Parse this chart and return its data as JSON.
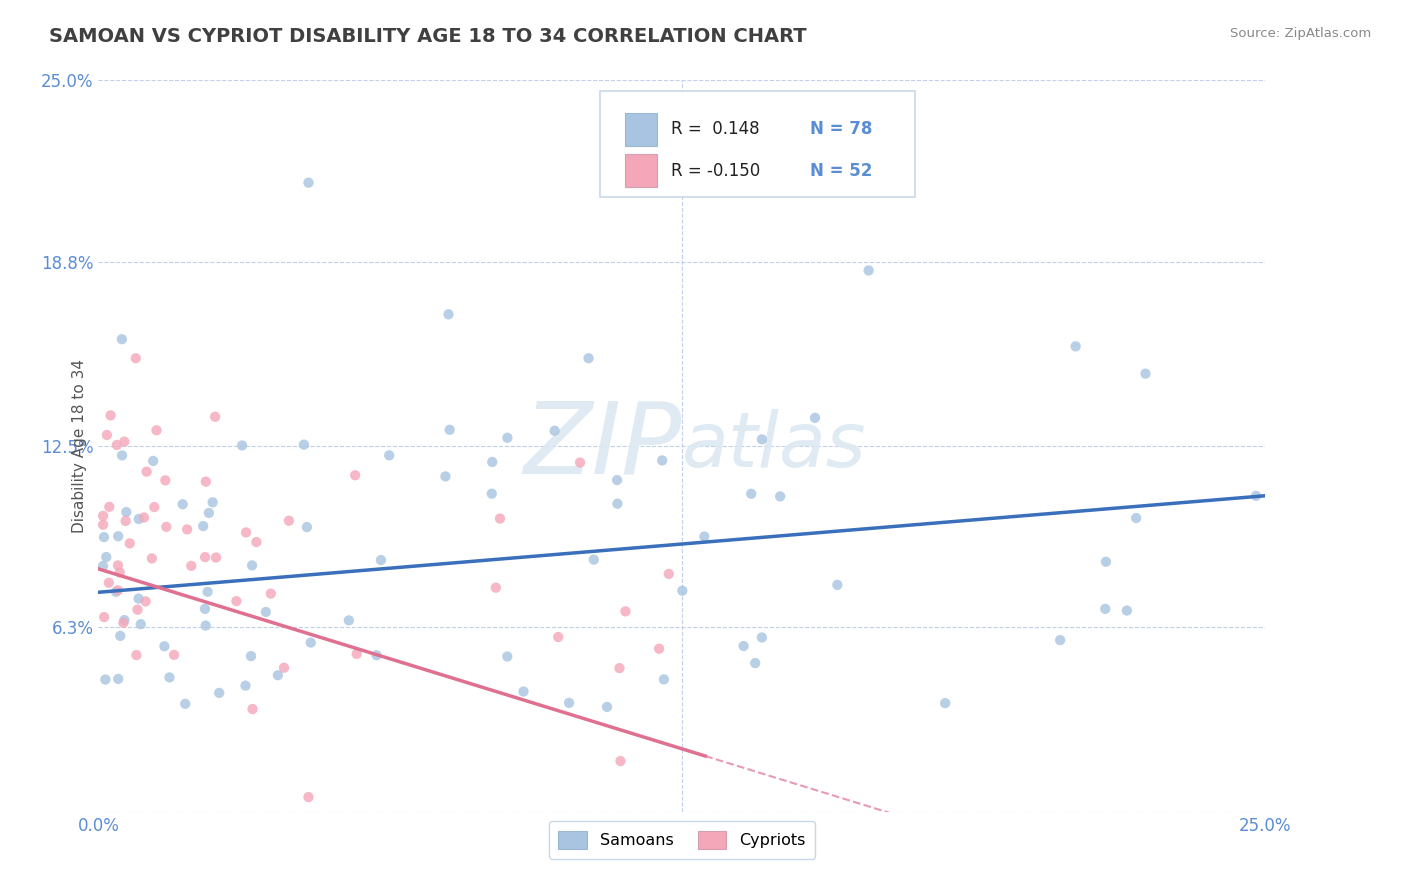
{
  "title": "SAMOAN VS CYPRIOT DISABILITY AGE 18 TO 34 CORRELATION CHART",
  "source_text": "Source: ZipAtlas.com",
  "ylabel": "Disability Age 18 to 34",
  "xlim": [
    0.0,
    0.25
  ],
  "ylim": [
    0.0,
    0.25
  ],
  "xtick_positions": [
    0.0,
    0.25
  ],
  "xtick_labels": [
    "0.0%",
    "25.0%"
  ],
  "ytick_values": [
    0.25,
    0.188,
    0.125,
    0.063
  ],
  "ytick_labels": [
    "25.0%",
    "18.8%",
    "12.5%",
    "6.3%"
  ],
  "samoan_color": "#a8c4e0",
  "cypriot_color": "#f4a7b9",
  "samoan_line_color": "#3a6fbb",
  "cypriot_line_color": "#e07090",
  "R_samoan": 0.148,
  "N_samoan": 78,
  "R_cypriot": -0.15,
  "N_cypriot": 52,
  "legend_samoan_label": "Samoans",
  "legend_cypriot_label": "Cypriots",
  "legend_R_label_samoan": "R =  0.148",
  "legend_R_label_cypriot": "R = -0.150",
  "legend_N_label_samoan": "N = 78",
  "legend_N_label_cypriot": "N = 52",
  "watermark_zip": "ZIP",
  "watermark_atlas": "atlas",
  "background_color": "#ffffff",
  "grid_color": "#c0d0e8",
  "title_color": "#404040",
  "axis_label_color": "#5b8dd4",
  "source_color": "#888888"
}
